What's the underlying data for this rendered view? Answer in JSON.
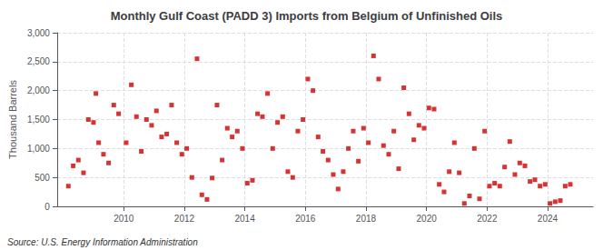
{
  "chart_data": {
    "type": "scatter",
    "title": "Monthly Gulf Coast (PADD 3) Imports from Belgium of Unfinished Oils",
    "ylabel": "Thousand Barrels",
    "annotations": [
      "Source: U.S. Energy Information Administration"
    ],
    "color": "#cc0000",
    "marker": "square",
    "grid": true,
    "xlim": [
      2007.8,
      2025.5
    ],
    "xticks": [
      2010,
      2012,
      2014,
      2016,
      2018,
      2020,
      2022,
      2024
    ],
    "ylim": [
      0,
      3000
    ],
    "yticks": [
      0,
      500,
      {
        "value": 1000,
        "label": "1,000"
      },
      {
        "value": 1500,
        "label": "1,500"
      },
      {
        "value": 2000,
        "label": "2,000"
      },
      {
        "value": 2500,
        "label": "2,500"
      },
      {
        "value": 3000,
        "label": "3,000"
      }
    ],
    "x": [
      2008.17,
      2008.33,
      2008.5,
      2008.67,
      2008.83,
      2009.0,
      2009.08,
      2009.17,
      2009.33,
      2009.5,
      2009.67,
      2009.83,
      2010.08,
      2010.25,
      2010.42,
      2010.58,
      2010.75,
      2010.92,
      2011.08,
      2011.25,
      2011.42,
      2011.58,
      2011.75,
      2011.92,
      2012.08,
      2012.25,
      2012.42,
      2012.58,
      2012.75,
      2012.92,
      2013.08,
      2013.25,
      2013.42,
      2013.58,
      2013.75,
      2013.92,
      2014.08,
      2014.25,
      2014.42,
      2014.58,
      2014.75,
      2014.92,
      2015.08,
      2015.25,
      2015.42,
      2015.58,
      2015.75,
      2015.92,
      2016.08,
      2016.25,
      2016.42,
      2016.58,
      2016.75,
      2016.92,
      2017.08,
      2017.25,
      2017.42,
      2017.58,
      2017.75,
      2017.92,
      2018.08,
      2018.25,
      2018.42,
      2018.58,
      2018.75,
      2018.92,
      2019.08,
      2019.25,
      2019.42,
      2019.58,
      2019.75,
      2019.92,
      2020.08,
      2020.25,
      2020.42,
      2020.58,
      2020.75,
      2020.92,
      2021.08,
      2021.25,
      2021.42,
      2021.58,
      2021.75,
      2021.92,
      2022.08,
      2022.25,
      2022.42,
      2022.58,
      2022.75,
      2022.92,
      2023.08,
      2023.25,
      2023.42,
      2023.58,
      2023.75,
      2023.92,
      2024.08,
      2024.25,
      2024.42,
      2024.58,
      2024.75
    ],
    "values": [
      350,
      700,
      800,
      580,
      1500,
      1450,
      1950,
      1100,
      900,
      750,
      1750,
      1600,
      1100,
      2100,
      1550,
      950,
      1500,
      1400,
      1650,
      1200,
      1250,
      1750,
      1100,
      900,
      1000,
      500,
      2550,
      200,
      120,
      490,
      1750,
      800,
      1350,
      1200,
      1300,
      1000,
      400,
      450,
      1600,
      1550,
      1950,
      1000,
      1450,
      1550,
      600,
      500,
      1300,
      1500,
      2200,
      2000,
      1200,
      950,
      800,
      550,
      300,
      600,
      1000,
      1300,
      780,
      1350,
      1100,
      2600,
      2200,
      1050,
      900,
      1300,
      650,
      2050,
      1600,
      1150,
      1400,
      1350,
      1700,
      1680,
      380,
      250,
      600,
      1100,
      580,
      50,
      180,
      1000,
      130,
      1300,
      350,
      400,
      350,
      680,
      1120,
      550,
      750,
      700,
      430,
      460,
      350,
      380,
      50,
      80,
      100,
      350,
      380
    ]
  }
}
